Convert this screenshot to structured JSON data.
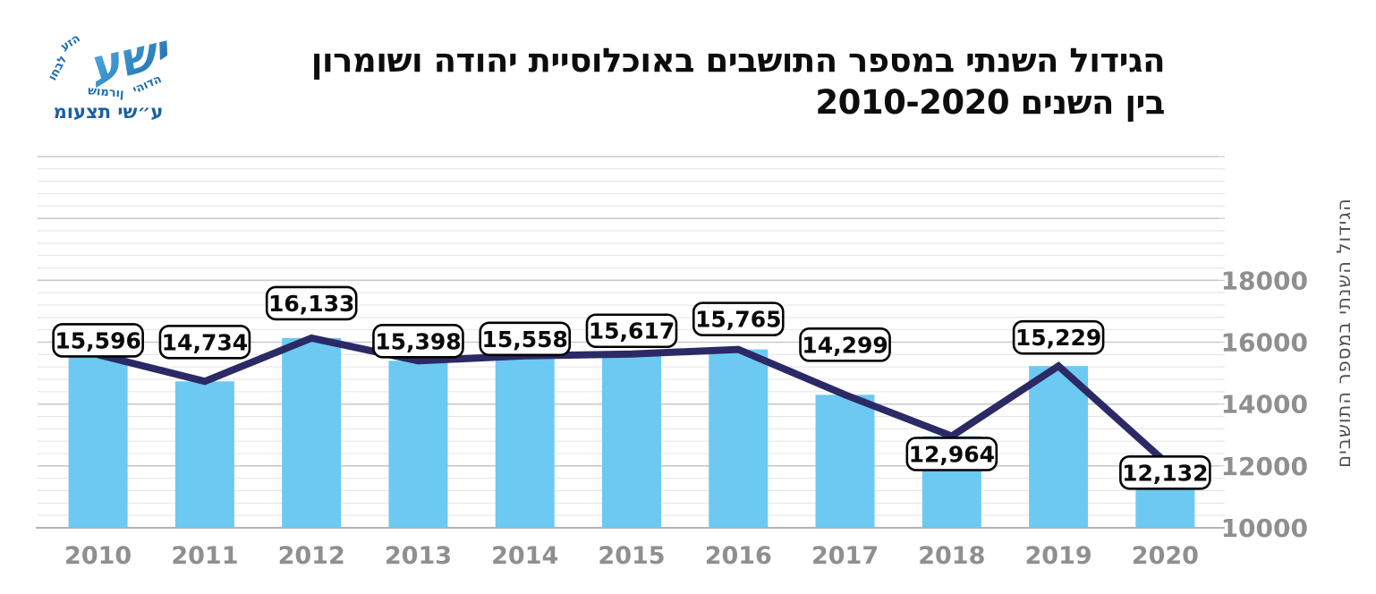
{
  "logo": {
    "monogram": "ישע",
    "arc_words": [
      "יהודה",
      "שומרון",
      "וחבל",
      "עזה"
    ],
    "caption": "מועצת יש״ע"
  },
  "title": {
    "line1": "הגידול השנתי במספר התושבים באוכלוסיית יהודה ושומרון",
    "line2": "בין השנים 2010-2020"
  },
  "chart_data": {
    "type": "bar",
    "overlay": "line",
    "title": "הגידול השנתי במספר התושבים באוכלוסיית יהודה ושומרון בין השנים 2010-2020",
    "categories": [
      "2010",
      "2011",
      "2012",
      "2013",
      "2014",
      "2015",
      "2016",
      "2017",
      "2018",
      "2019",
      "2020"
    ],
    "values": [
      15596,
      14734,
      16133,
      15398,
      15558,
      15617,
      15765,
      14299,
      12964,
      15229,
      12132
    ],
    "data_labels": [
      "15,596",
      "14,734",
      "16,133",
      "15,398",
      "15,558",
      "15,617",
      "15,765",
      "14,299",
      "12,964",
      "15,229",
      "12,132"
    ],
    "label_side": [
      "above",
      "above",
      "above",
      "above",
      "above",
      "above",
      "above",
      "above",
      "below",
      "above",
      "below"
    ],
    "label_dy": [
      -16,
      -44,
      -39,
      -22,
      -19,
      -26,
      -34,
      -56,
      20,
      -32,
      12
    ],
    "xlabel": "",
    "ylabel": "הגידול השנתי במספר התושבים",
    "yticks": [
      10000,
      12000,
      14000,
      16000,
      18000
    ],
    "ylim": [
      10000,
      22000
    ],
    "major_unit": 2000,
    "minor_unit": 400,
    "grid": true,
    "legend": false
  },
  "colors": {
    "bar": "#6cc9f2",
    "line": "#2b2a66",
    "axis_text": "#8f8f8f",
    "grid_minor": "#e4e4e4",
    "grid_major": "#c9c9c9",
    "axis_line": "#b3b3b3",
    "callout_border": "#000000",
    "callout_fill": "#ffffff",
    "callout_text": "#0a0a0a",
    "logo_blue_light": "#55b0e2",
    "logo_blue_dark": "#1565a8",
    "logo_text": "#1e6fb0",
    "ylabel_text": "#4f4f4f"
  }
}
